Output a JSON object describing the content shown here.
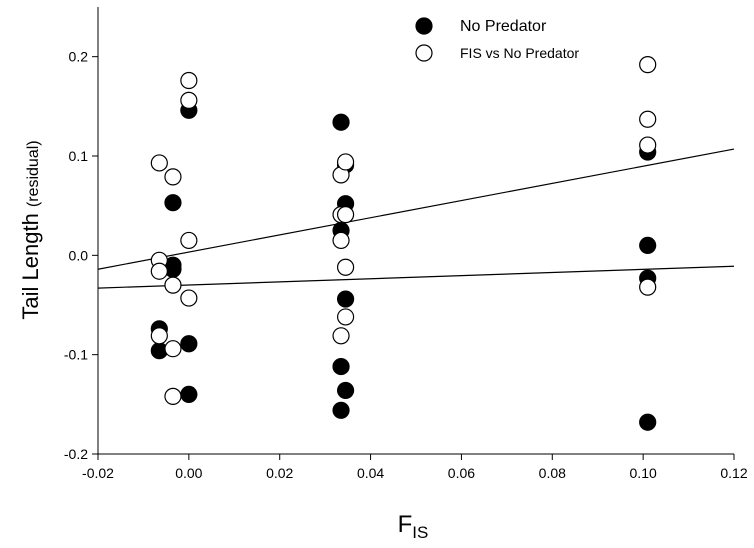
{
  "chart_data": {
    "type": "scatter",
    "xlabel": {
      "main": "F",
      "sub": "IS"
    },
    "ylabel": {
      "main": "Tail Length ",
      "small": "(residual)"
    },
    "xlim": [
      -0.02,
      0.12
    ],
    "ylim": [
      -0.2,
      0.25
    ],
    "x_ticks": [
      -0.02,
      0.0,
      0.02,
      0.04,
      0.06,
      0.08,
      0.1,
      0.12
    ],
    "x_tick_labels": [
      "-0.02",
      "0.00",
      "0.02",
      "0.04",
      "0.06",
      "0.08",
      "0.10",
      "0.12"
    ],
    "y_ticks": [
      -0.2,
      -0.1,
      0.0,
      0.1,
      0.2
    ],
    "y_tick_labels": [
      "-0.2",
      "-0.1",
      "0.0",
      "0.1",
      "0.2"
    ],
    "grid": false,
    "legend_position": "top-right",
    "series": [
      {
        "name": "No Predator",
        "marker": "filled-circle",
        "color": "#000000",
        "points": [
          [
            -0.0065,
            -0.096
          ],
          [
            -0.0065,
            -0.074
          ],
          [
            -0.0035,
            0.053
          ],
          [
            -0.0035,
            -0.01
          ],
          [
            -0.0035,
            -0.014
          ],
          [
            0.0,
            0.146
          ],
          [
            0.0,
            -0.089
          ],
          [
            0.0,
            -0.14
          ],
          [
            0.0335,
            0.134
          ],
          [
            0.0335,
            0.025
          ],
          [
            0.0335,
            -0.112
          ],
          [
            0.0335,
            -0.156
          ],
          [
            0.0345,
            0.091
          ],
          [
            0.0345,
            0.052
          ],
          [
            0.0345,
            -0.044
          ],
          [
            0.0345,
            -0.136
          ],
          [
            0.101,
            0.104
          ],
          [
            0.101,
            0.01
          ],
          [
            0.101,
            -0.023
          ],
          [
            0.101,
            -0.168
          ]
        ],
        "trendline": {
          "x": [
            -0.02,
            0.12
          ],
          "y": [
            -0.033,
            -0.011
          ]
        }
      },
      {
        "name": "FIS vs No Predator",
        "marker": "open-circle",
        "color": "#000000",
        "points": [
          [
            -0.0065,
            0.093
          ],
          [
            -0.0065,
            -0.005
          ],
          [
            -0.0065,
            -0.016
          ],
          [
            -0.0065,
            -0.081
          ],
          [
            -0.0035,
            0.079
          ],
          [
            -0.0035,
            -0.03
          ],
          [
            -0.0035,
            -0.094
          ],
          [
            -0.0035,
            -0.142
          ],
          [
            0.0,
            0.176
          ],
          [
            0.0,
            0.156
          ],
          [
            0.0,
            0.015
          ],
          [
            0.0,
            -0.043
          ],
          [
            0.0335,
            0.081
          ],
          [
            0.0335,
            0.041
          ],
          [
            0.0335,
            0.015
          ],
          [
            0.0335,
            -0.081
          ],
          [
            0.0345,
            0.094
          ],
          [
            0.0345,
            0.041
          ],
          [
            0.0345,
            -0.012
          ],
          [
            0.0345,
            -0.062
          ],
          [
            0.101,
            0.192
          ],
          [
            0.101,
            0.137
          ],
          [
            0.101,
            0.111
          ],
          [
            0.101,
            -0.032
          ]
        ],
        "trendline": {
          "x": [
            -0.02,
            0.12
          ],
          "y": [
            -0.014,
            0.107
          ]
        }
      }
    ]
  }
}
